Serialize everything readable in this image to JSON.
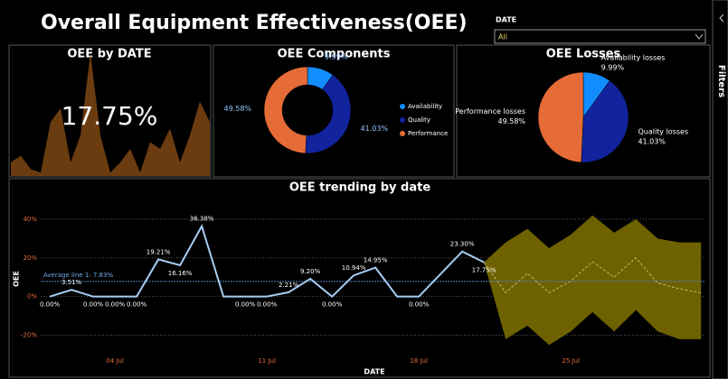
{
  "header": {
    "title": "Overall Equipment Effectiveness(OEE)"
  },
  "filter": {
    "label": "DATE",
    "value": "All"
  },
  "side_pane": {
    "label": "Filters"
  },
  "chart_data": [
    {
      "type": "card-area",
      "title": "OEE by DATE",
      "card_value": 17.75,
      "card_label": "17.75%",
      "values": [
        4,
        6,
        2,
        1,
        16,
        20,
        4,
        12,
        36.38,
        12,
        1,
        4,
        8,
        1,
        10,
        8,
        14,
        4,
        12,
        22,
        16
      ],
      "ylim": [
        0,
        40
      ],
      "color": "#6b3c10"
    },
    {
      "type": "donut",
      "title": "OEE Components",
      "categories": [
        "Availability",
        "Quality",
        "Performance"
      ],
      "values": [
        9.99,
        41.03,
        49.58
      ],
      "value_labels": [
        "9.99%",
        "41.03%",
        "49.58%"
      ],
      "colors": [
        "#118dff",
        "#12239e",
        "#e66c37"
      ],
      "legend": "right"
    },
    {
      "type": "pie",
      "title": "OEE Losses",
      "categories": [
        "Availability losses",
        "Quality losses",
        "Performance losses"
      ],
      "values": [
        9.99,
        41.03,
        49.58
      ],
      "value_labels": [
        "9.99%",
        "41.03%",
        "49.58%"
      ],
      "colors": [
        "#118dff",
        "#12239e",
        "#e66c37"
      ]
    },
    {
      "type": "line",
      "title": "OEE trending by date",
      "xlabel": "DATE",
      "ylabel": "OEE",
      "x": [
        1,
        2,
        3,
        4,
        5,
        6,
        7,
        8,
        9,
        10,
        11,
        12,
        13,
        14,
        15,
        16,
        17,
        18,
        19,
        20,
        21
      ],
      "values": [
        0,
        3.51,
        0,
        0,
        0,
        19.21,
        16.16,
        36.38,
        0,
        0,
        0,
        2.21,
        9.2,
        0,
        10.94,
        14.95,
        0,
        0,
        11.65,
        23.3,
        17.75
      ],
      "value_labels": [
        "0.00%",
        "3.51%",
        "0.00%",
        "0.00%",
        "0.00%",
        "19.21%",
        "16.16%",
        "36.38%",
        null,
        "0.00%",
        "0.00%",
        "2.21%",
        "9.20%",
        "0.00%",
        "10.94%",
        "14.95%",
        null,
        "0.00%",
        null,
        "23.30%",
        "17.75%"
      ],
      "color": "#a6cdf5",
      "forecast": {
        "x": [
          21,
          22,
          23,
          24,
          25,
          26,
          27,
          28,
          29,
          30,
          31
        ],
        "values": [
          17.75,
          2,
          12,
          2,
          8,
          18,
          10,
          20,
          7,
          4,
          2
        ],
        "upper": [
          17.75,
          28,
          35,
          25,
          32,
          42,
          33,
          40,
          30,
          28,
          28
        ],
        "lower": [
          17.75,
          -22,
          -15,
          -25,
          -18,
          -8,
          -18,
          -7,
          -18,
          -22,
          -22
        ],
        "color": "#c8b56e",
        "band_color": "#6e6100"
      },
      "average_line": {
        "label": "Average line 1: 7.83%",
        "value": 7.83,
        "color": "#4a7fc1"
      },
      "xlim": [
        0.58,
        31.2
      ],
      "ylim": [
        -30,
        46
      ],
      "xticks": [
        {
          "value": 4,
          "label": "04 Jul"
        },
        {
          "value": 11,
          "label": "11 Jul"
        },
        {
          "value": 18,
          "label": "18 Jul"
        },
        {
          "value": 25,
          "label": "25 Jul"
        }
      ],
      "yticks": [
        {
          "value": -20,
          "label": "-20%"
        },
        {
          "value": 0,
          "label": "0%"
        },
        {
          "value": 20,
          "label": "20%"
        },
        {
          "value": 40,
          "label": "40%"
        }
      ],
      "grid": true
    }
  ]
}
